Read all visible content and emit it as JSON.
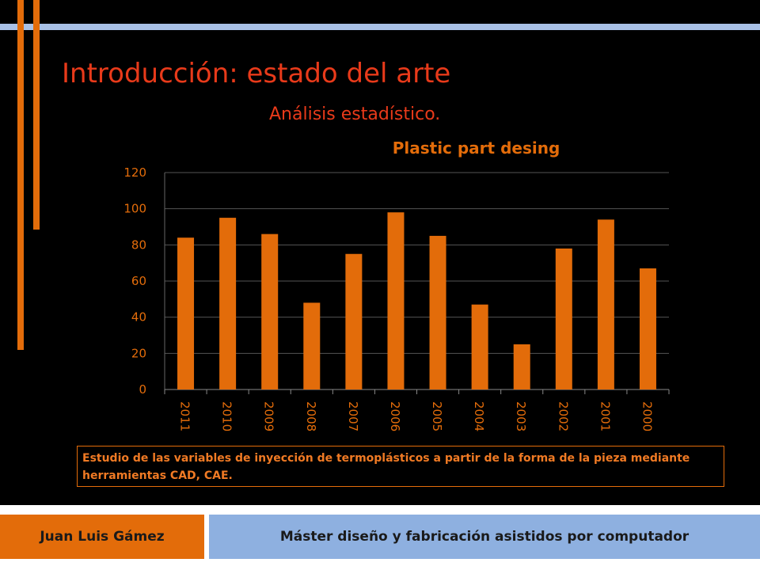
{
  "slide": {
    "title": "Introducción: estado del arte",
    "subtitle": "Análisis estadístico.",
    "caption": "Estudio de las variables de inyección de termoplásticos a partir de la forma de la pieza mediante herramientas CAD, CAE.",
    "footer_left": "Juan Luis Gámez",
    "footer_right": "Máster diseño y fabricación asistidos por computador"
  },
  "colors": {
    "accent": "#e36c0a",
    "title": "#e83a1a",
    "top_rule": "#a9c1e6",
    "footer_blue": "#8eb0e0",
    "background": "#000000"
  },
  "chart_data": {
    "type": "bar",
    "title": "Plastic part desing",
    "categories": [
      "2011",
      "2010",
      "2009",
      "2008",
      "2007",
      "2006",
      "2005",
      "2004",
      "2003",
      "2002",
      "2001",
      "2000"
    ],
    "values": [
      84,
      95,
      86,
      48,
      75,
      98,
      85,
      47,
      25,
      78,
      94,
      67
    ],
    "ylim": [
      0,
      120
    ],
    "yticks": [
      0,
      20,
      40,
      60,
      80,
      100,
      120
    ],
    "xlabel": "",
    "ylabel": "",
    "grid": true,
    "legend": "none",
    "bar_color": "#e36c0a"
  }
}
